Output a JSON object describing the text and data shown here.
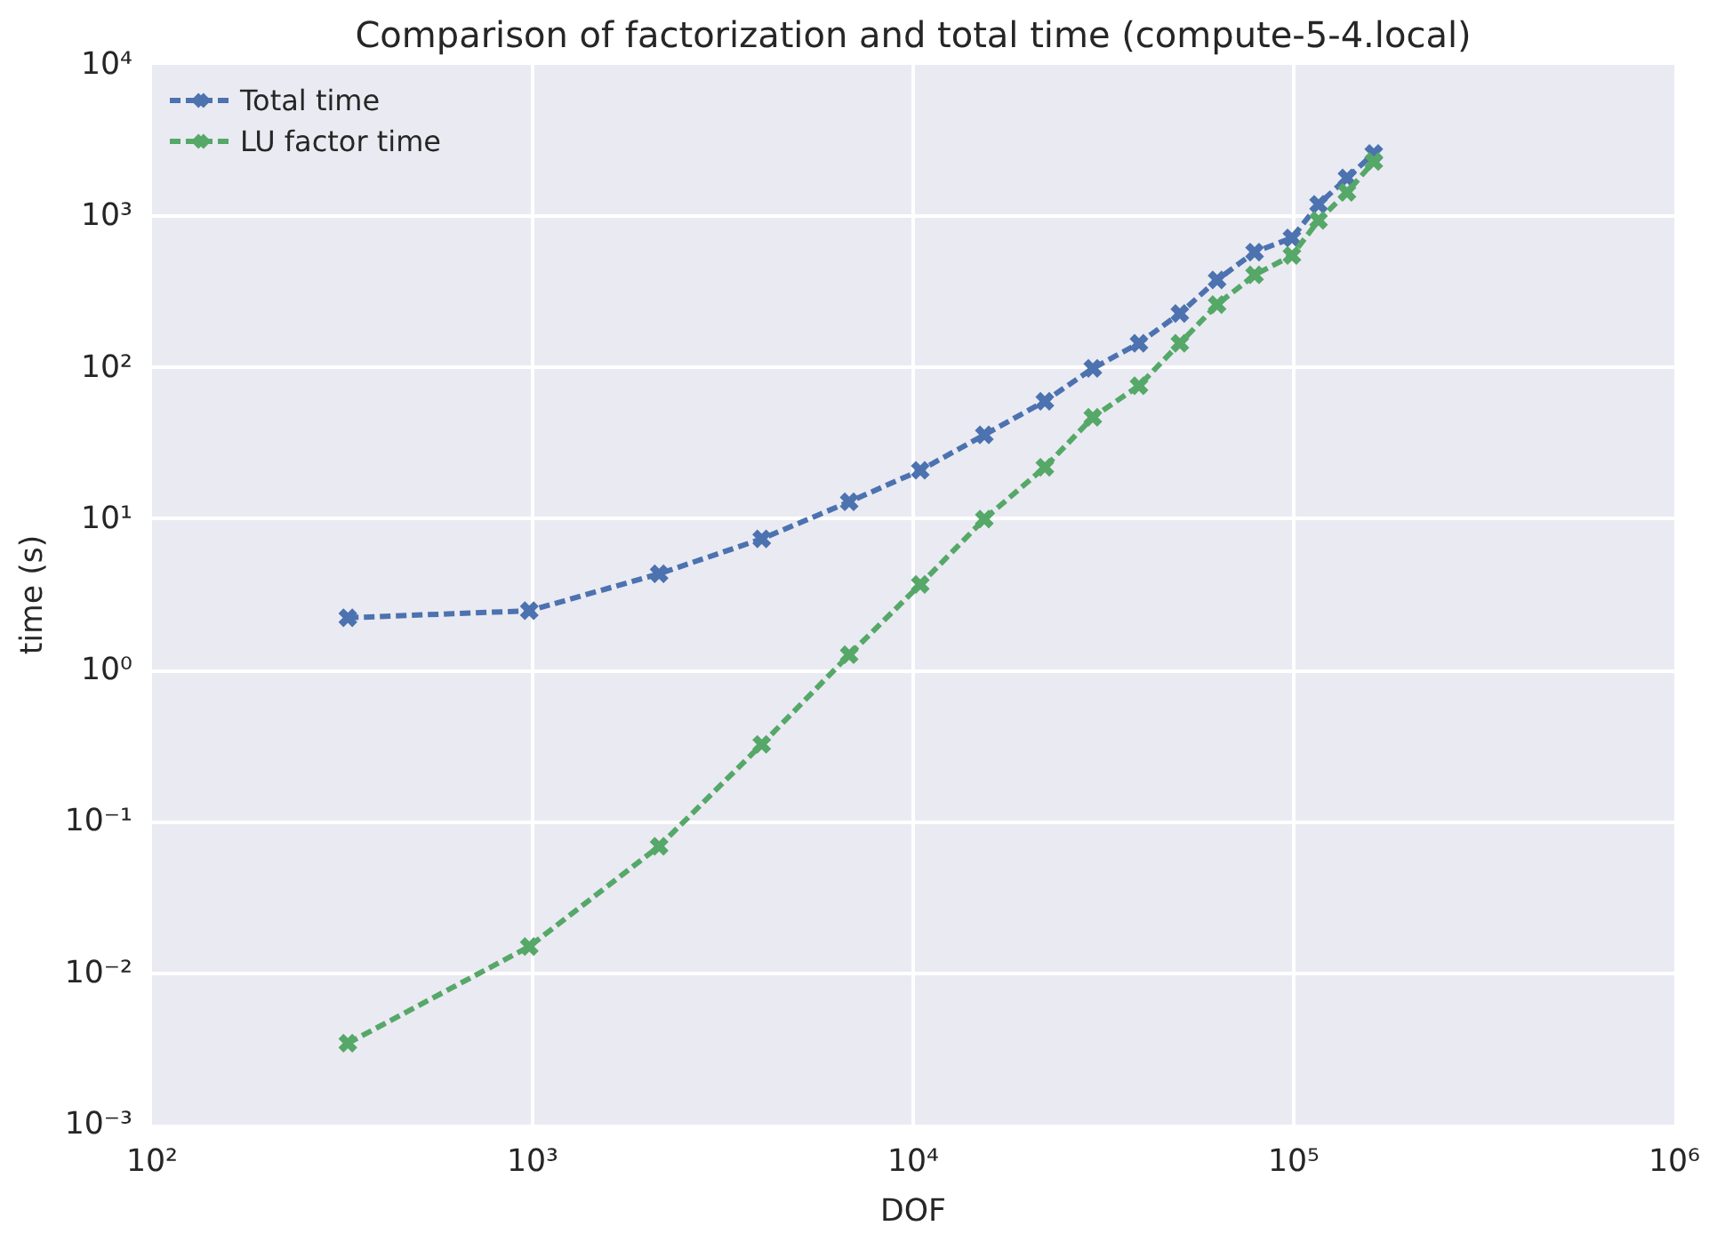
{
  "chart_data": {
    "type": "line",
    "title": "Comparison of factorization and total time (compute-5-4.local)",
    "xlabel": "DOF",
    "ylabel": "time (s)",
    "log": "xy",
    "grid": true,
    "legend": "top left",
    "marker": "cross",
    "line_style": "dashed",
    "x": [
      327,
      980,
      2150,
      4000,
      6790,
      10440,
      15380,
      22180,
      29650,
      39200,
      50200,
      62900,
      78900,
      98900,
      116200,
      138000,
      162300
    ],
    "xlim": [
      100,
      1000000
    ],
    "xticks": [
      {
        "value": 100,
        "label": "10²"
      },
      {
        "value": 1000,
        "label": "10³"
      },
      {
        "value": 10000,
        "label": "10⁴"
      },
      {
        "value": 100000,
        "label": "10⁵"
      },
      {
        "value": 1000000,
        "label": "10⁶"
      }
    ],
    "ylim": [
      0.001,
      10000
    ],
    "yticks": [
      {
        "value": 0.001,
        "label": "10⁻³"
      },
      {
        "value": 0.01,
        "label": "10⁻²"
      },
      {
        "value": 0.1,
        "label": "10⁻¹"
      },
      {
        "value": 1,
        "label": "10⁰"
      },
      {
        "value": 10,
        "label": "10¹"
      },
      {
        "value": 100,
        "label": "10²"
      },
      {
        "value": 1000,
        "label": "10³"
      },
      {
        "value": 10000,
        "label": "10⁴"
      }
    ],
    "series": [
      {
        "name": "Total time",
        "color": "#4c72b0",
        "values": [
          2.23,
          2.48,
          4.35,
          7.4,
          13,
          21,
          36,
          60,
          99,
          145,
          228,
          380,
          580,
          720,
          1200,
          1790,
          2600
        ]
      },
      {
        "name": "LU factor time",
        "color": "#55a868",
        "values": [
          0.00345,
          0.015,
          0.069,
          0.325,
          1.27,
          3.7,
          10,
          22,
          47,
          76,
          145,
          261,
          410,
          551,
          940,
          1440,
          2300
        ]
      }
    ]
  }
}
